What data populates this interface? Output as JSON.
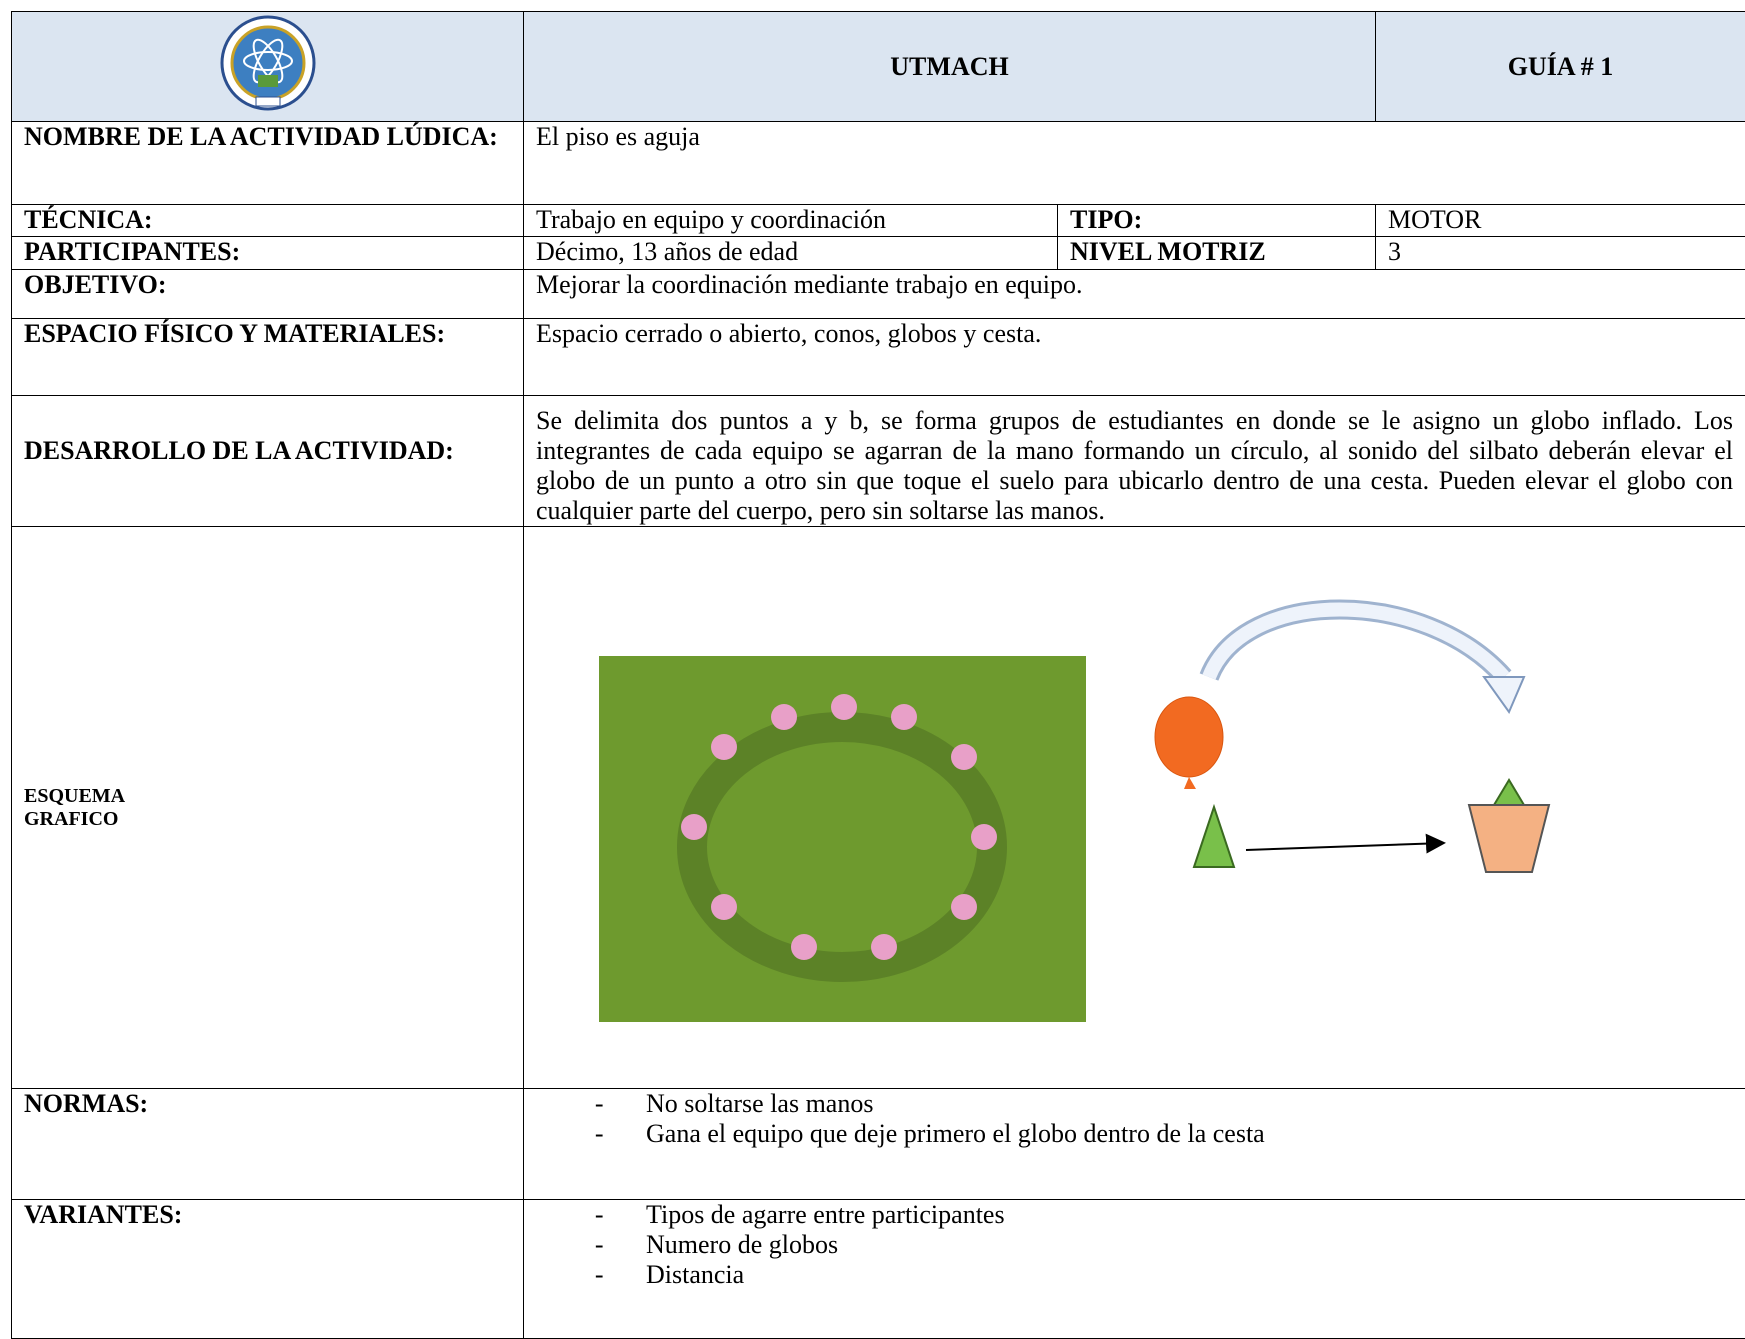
{
  "header": {
    "title": "UTMACH",
    "guide": "GUÍA # 1"
  },
  "rows": {
    "activity": {
      "label": "NOMBRE DE LA ACTIVIDAD LÚDICA:",
      "value": "El piso es aguja"
    },
    "technique": {
      "label": "TÉCNICA:",
      "value": "Trabajo en equipo y coordinación",
      "label2": "TIPO:",
      "value2": "MOTOR"
    },
    "participants": {
      "label": "PARTICIPANTES:",
      "value": "Décimo, 13 años de edad",
      "label2": "NIVEL MOTRIZ",
      "value2": "3"
    },
    "objective": {
      "label": "OBJETIVO:",
      "value": "Mejorar la coordinación mediante trabajo en equipo."
    },
    "space": {
      "label": "ESPACIO FÍSICO Y MATERIALES:",
      "value": "Espacio cerrado o abierto, conos, globos y cesta."
    },
    "development": {
      "label": "DESARROLLO DE LA ACTIVIDAD:",
      "value": "Se delimita dos puntos a y b, se forma grupos de estudiantes en donde se le asigno un globo inflado. Los integrantes de cada equipo se agarran de la mano formando un círculo, al sonido del silbato deberán elevar el globo de un punto a otro sin que toque el suelo para ubicarlo dentro de una cesta. Pueden elevar el globo con cualquier parte del cuerpo, pero sin soltarse las manos."
    },
    "scheme": {
      "label": "ESQUEMA GRAFICO"
    },
    "rules": {
      "label": "NORMAS:",
      "items": [
        "No soltarse las manos",
        "Gana el equipo que deje primero el globo dentro de la cesta"
      ]
    },
    "variants": {
      "label": "VARIANTES:",
      "items": [
        "Tipos de agarre entre participantes",
        "Numero de globos",
        "Distancia"
      ]
    }
  }
}
